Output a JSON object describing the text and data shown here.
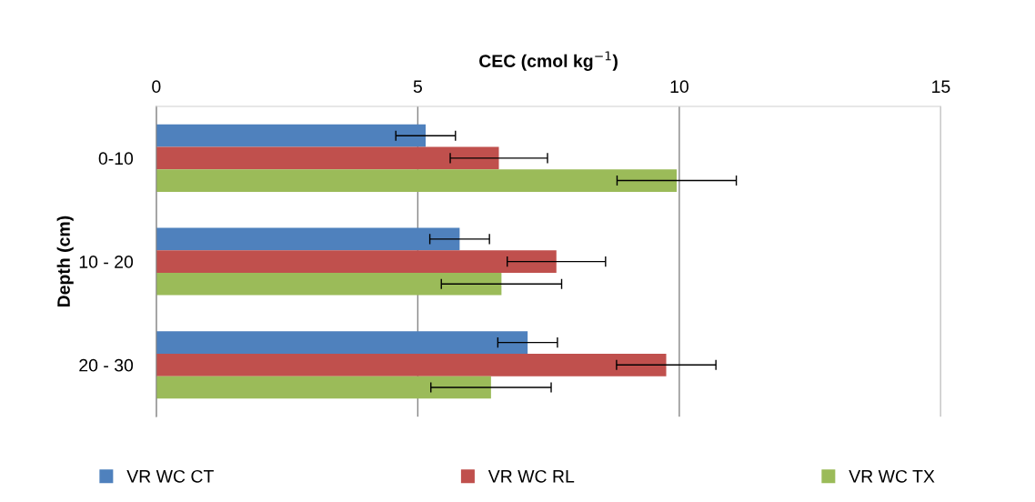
{
  "chart_data": {
    "type": "bar",
    "orientation": "horizontal",
    "xlabel": "CEC (cmol kg$^{−1}$)",
    "ylabel": "Depth (cm)",
    "categories": [
      "0-10",
      "10 - 20",
      "20 - 30"
    ],
    "series": [
      {
        "name": "VR WC CT",
        "color": "#4f81bd",
        "values": [
          5.15,
          5.8,
          7.1
        ],
        "errors": [
          0.57,
          0.57,
          0.57
        ]
      },
      {
        "name": "VR WC RL",
        "color": "#c0504d",
        "values": [
          6.55,
          7.65,
          9.75
        ],
        "errors": [
          0.93,
          0.94,
          0.95
        ]
      },
      {
        "name": "VR WC TX",
        "color": "#9bbb59",
        "values": [
          9.95,
          6.6,
          6.4
        ],
        "errors": [
          1.14,
          1.15,
          1.15
        ]
      }
    ],
    "xlim": [
      0,
      15
    ],
    "xticks": [
      0,
      5,
      10,
      15
    ],
    "grid": "x",
    "legend": "bottom"
  }
}
